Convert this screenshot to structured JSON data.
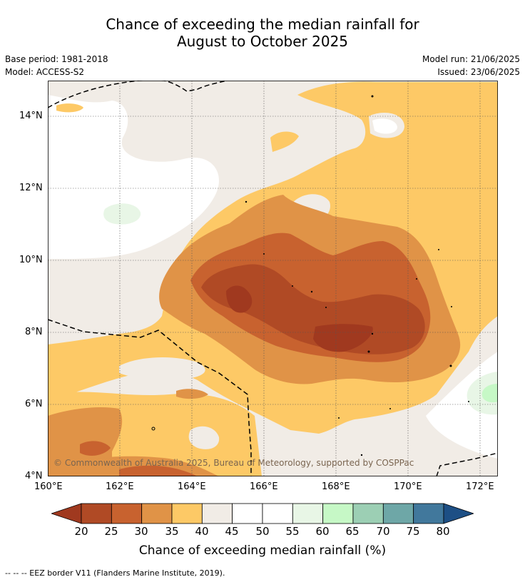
{
  "title": {
    "line1": "Chance of exceeding the median rainfall for",
    "line2": "August to October 2025"
  },
  "meta": {
    "base_period": "Base period: 1981-2018",
    "model": "Model: ACCESS-S2",
    "model_run": "Model run: 21/06/2025",
    "issued": "Issued: 23/06/2025"
  },
  "map": {
    "lon_labels": [
      "160°E",
      "162°E",
      "164°E",
      "166°E",
      "168°E",
      "170°E",
      "172°E"
    ],
    "lat_labels": [
      "14°N",
      "12°N",
      "10°N",
      "8°N",
      "6°N",
      "4°N"
    ],
    "copyright": "© Commonwealth of Australia 2025, Bureau of Meteorology, supported by COSPPac"
  },
  "colorbar": {
    "title": "Chance of exceeding median rainfall (%)",
    "ticks": [
      "20",
      "25",
      "30",
      "35",
      "40",
      "45",
      "50",
      "55",
      "60",
      "65",
      "70",
      "75",
      "80"
    ],
    "colors": [
      "#a0391f",
      "#b04a25",
      "#c8622f",
      "#e09347",
      "#fdc966",
      "#f1ece6",
      "#ffffff",
      "#ffffff",
      "#e8f6e6",
      "#c6f8c6",
      "#9ccfb4",
      "#6ea7a7",
      "#41789c",
      "#1d4f85"
    ]
  },
  "footer": "--  --  -- EEZ border V11 (Flanders Marine Institute, 2019)."
}
